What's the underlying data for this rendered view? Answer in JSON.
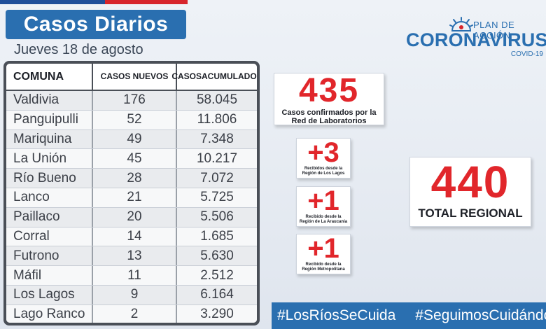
{
  "header": {
    "title": "Casos Diarios",
    "date": "Jueves 18 de agosto"
  },
  "logo": {
    "plan": "PLAN DE ACCIÓN",
    "name": "CORONAVIRUS",
    "sub": "COVID-19",
    "icon": "sun-icon"
  },
  "table": {
    "headers": {
      "comuna": "COMUNA",
      "nuevos": "CASOS NUEVOS",
      "acumulados_1": "CASOS",
      "acumulados_2": "ACUMULADOS"
    },
    "rows": [
      {
        "comuna": "Valdivia",
        "nuevos": "176",
        "acumulados": "58.045"
      },
      {
        "comuna": "Panguipulli",
        "nuevos": "52",
        "acumulados": "11.806"
      },
      {
        "comuna": "Mariquina",
        "nuevos": "49",
        "acumulados": "7.348"
      },
      {
        "comuna": "La Unión",
        "nuevos": "45",
        "acumulados": "10.217"
      },
      {
        "comuna": "Río Bueno",
        "nuevos": "28",
        "acumulados": "7.072"
      },
      {
        "comuna": "Lanco",
        "nuevos": "21",
        "acumulados": "5.725"
      },
      {
        "comuna": "Paillaco",
        "nuevos": "20",
        "acumulados": "5.506"
      },
      {
        "comuna": "Corral",
        "nuevos": "14",
        "acumulados": "1.685"
      },
      {
        "comuna": "Futrono",
        "nuevos": "13",
        "acumulados": "5.630"
      },
      {
        "comuna": "Máfil",
        "nuevos": "11",
        "acumulados": "2.512"
      },
      {
        "comuna": "Los Lagos",
        "nuevos": "9",
        "acumulados": "6.164"
      },
      {
        "comuna": "Lago Ranco",
        "nuevos": "2",
        "acumulados": "3.290"
      }
    ]
  },
  "lab": {
    "value": "435",
    "label_1": "Casos confirmados  por la",
    "label_2": "Red de Laboratorios"
  },
  "received": [
    {
      "value": "+3",
      "label_1": "Recibidos  desde la",
      "label_2": "Región de Los Lagos"
    },
    {
      "value": "+1",
      "label_1": "Recibido  desde la",
      "label_2": "Región de La Araucanía"
    },
    {
      "value": "+1",
      "label_1": "Recibido  desde la",
      "label_2": "Región Metropolitana"
    }
  ],
  "regional": {
    "value": "440",
    "label": "TOTAL REGIONAL"
  },
  "hashtags": [
    "#LosRíosSeCuida",
    "#SeguimosCuidándonos"
  ],
  "colors": {
    "brand_blue": "#2a6fb0",
    "accent_red": "#e1262b",
    "table_border": "#4a4f57"
  }
}
